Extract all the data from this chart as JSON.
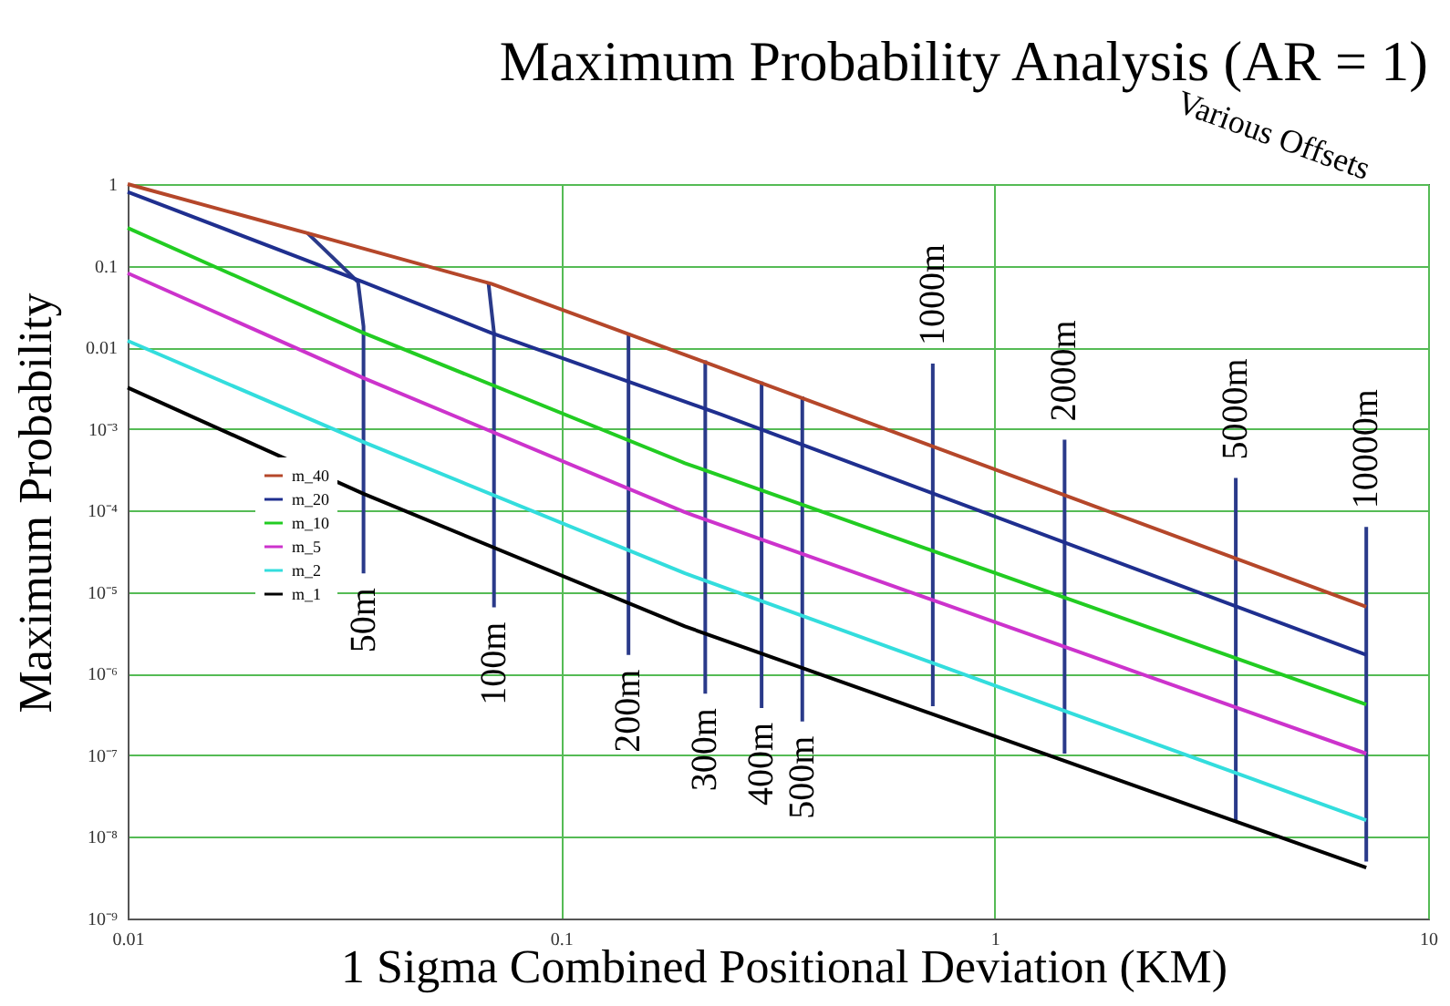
{
  "chart_data": {
    "type": "line",
    "title": "Maximum Probability Analysis (AR = 1)",
    "xlabel": "1 Sigma Combined Positional Deviation (KM)",
    "ylabel": "Maximum Probability",
    "log": "xy",
    "grid": true,
    "legend": "left",
    "xlim": [
      0.01,
      10
    ],
    "ylim": [
      1e-09,
      1
    ],
    "xticks": [
      0.01,
      0.1,
      1,
      10
    ],
    "yticks": [
      {
        "value": 1e-09,
        "label": "10⁻⁹"
      },
      {
        "value": 1e-08,
        "label": "10⁻⁸"
      },
      {
        "value": 1e-07,
        "label": "10⁻⁷"
      },
      {
        "value": 1e-06,
        "label": "10⁻⁶"
      },
      {
        "value": 1e-05,
        "label": "10⁻⁵"
      },
      {
        "value": 0.0001,
        "label": "10⁻⁴"
      },
      {
        "value": 0.001,
        "label": "10⁻³"
      },
      0.01,
      0.1,
      1
    ],
    "series": [
      {
        "name": "m_40",
        "color": "#b5472a",
        "x": [
          0.01,
          0.026,
          0.069,
          0.193,
          7.2
        ],
        "values": [
          1,
          0.25,
          0.06,
          0.0081,
          6.6e-06
        ]
      },
      {
        "name": "m_20",
        "color": "#1f2f8f",
        "x": [
          0.01,
          0.035,
          0.069,
          0.234,
          7.2
        ],
        "values": [
          0.8,
          0.063,
          0.015,
          0.0015,
          1.7e-06
        ]
      },
      {
        "name": "m_10",
        "color": "#22cc22",
        "x": [
          0.01,
          0.035,
          0.193,
          7.2
        ],
        "values": [
          0.29,
          0.015,
          0.00038,
          4.2e-07
        ]
      },
      {
        "name": "m_5",
        "color": "#cc33cc",
        "x": [
          0.01,
          0.035,
          0.193,
          7.2
        ],
        "values": [
          0.081,
          0.0042,
          9.5e-05,
          1.05e-07
        ]
      },
      {
        "name": "m_2",
        "color": "#33dddd",
        "x": [
          0.01,
          0.035,
          0.193,
          7.2
        ],
        "values": [
          0.012,
          0.00069,
          1.7e-05,
          1.6e-08
        ]
      },
      {
        "name": "m_1",
        "color": "#000000",
        "x": [
          0.01,
          0.035,
          0.193,
          7.2
        ],
        "values": [
          0.0032,
          0.00016,
          3.8e-06,
          4.2e-09
        ]
      },
      {
        "color": "#2a3a8a",
        "x": [
          0.026,
          0.034,
          0.035,
          0.035
        ],
        "values": [
          0.25,
          0.063,
          0.018,
          1.7e-05
        ]
      },
      {
        "color": "#2a3a8a",
        "x": [
          0.068,
          0.07,
          0.07
        ],
        "values": [
          0.06,
          0.015,
          6.5e-06
        ]
      },
      {
        "color": "#2a3a8a",
        "x": [
          0.143,
          0.143
        ],
        "values": [
          0.015,
          1.7e-06
        ]
      },
      {
        "color": "#2a3a8a",
        "x": [
          0.215,
          0.215
        ],
        "values": [
          0.0069,
          5.7e-07
        ]
      },
      {
        "color": "#2a3a8a",
        "x": [
          0.29,
          0.29
        ],
        "values": [
          0.0038,
          3.8e-07
        ]
      },
      {
        "color": "#2a3a8a",
        "x": [
          0.36,
          0.36
        ],
        "values": [
          0.0025,
          2.6e-07
        ]
      },
      {
        "color": "#2a3a8a",
        "x": [
          0.72,
          0.72
        ],
        "values": [
          4e-07,
          0.0063
        ]
      },
      {
        "color": "#2a3a8a",
        "x": [
          1.45,
          1.45
        ],
        "values": [
          1.05e-07,
          0.00074
        ]
      },
      {
        "color": "#2a3a8a",
        "x": [
          3.6,
          3.6
        ],
        "values": [
          1.6e-08,
          0.00025
        ]
      },
      {
        "color": "#2a3a8a",
        "x": [
          7.2,
          7.2
        ],
        "values": [
          5e-09,
          6.3e-05
        ]
      }
    ],
    "annotations": [
      "50m",
      "100m",
      "200m",
      "300m",
      "400m",
      "500m",
      "1000m",
      "2000m",
      "5000m",
      "10000m",
      "Various Offsets"
    ]
  }
}
